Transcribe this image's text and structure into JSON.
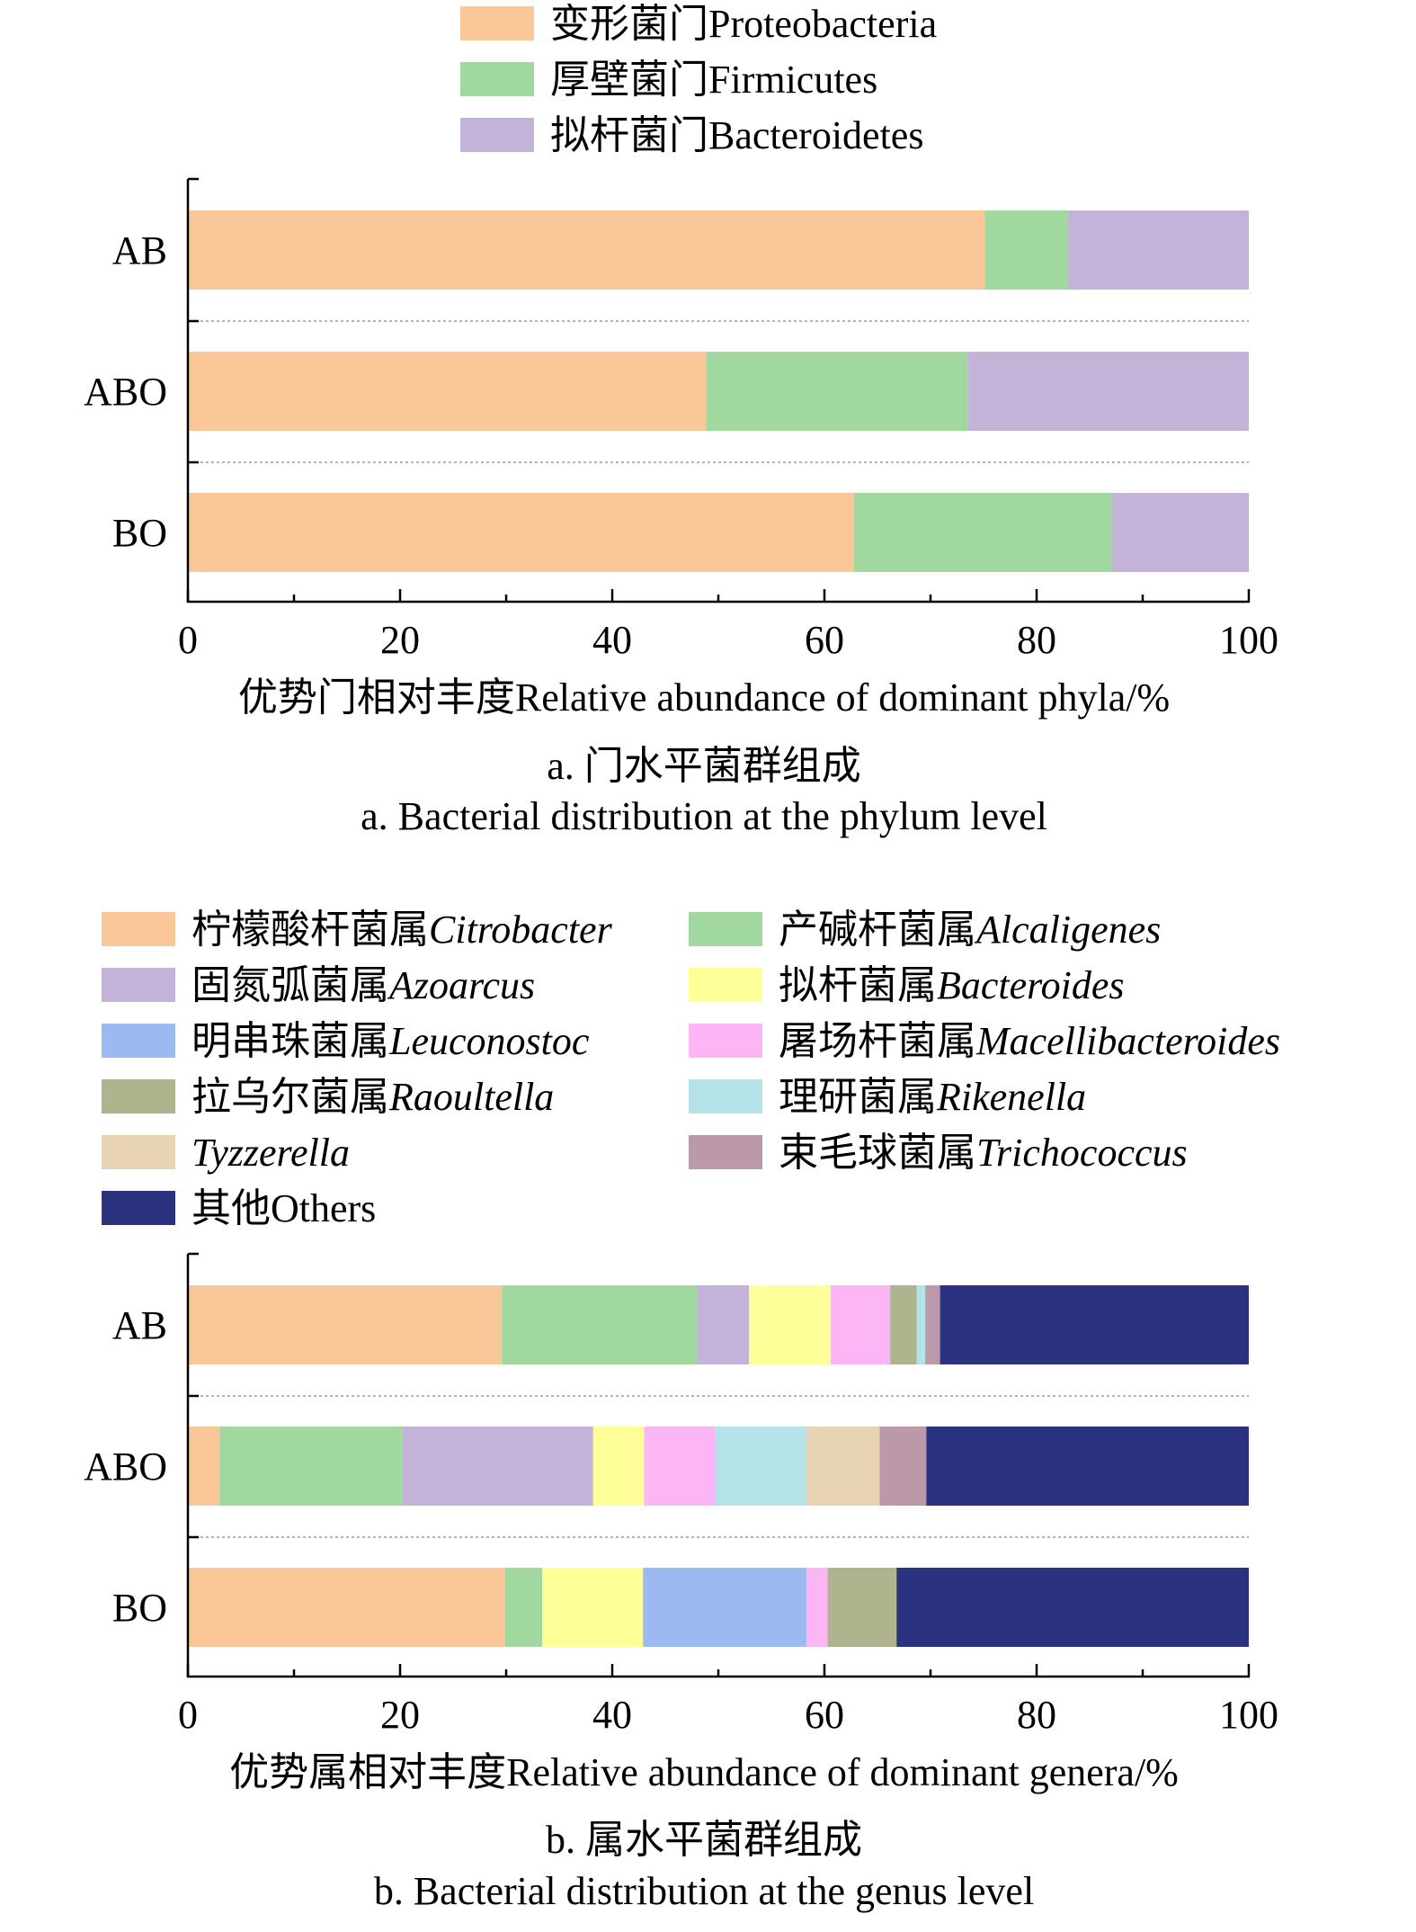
{
  "chart_data": [
    {
      "type": "bar",
      "orientation": "horizontal",
      "stacked": true,
      "categories": [
        "AB",
        "ABO",
        "BO"
      ],
      "series": [
        {
          "name": "变形菌门Proteobacteria",
          "label_cn": "变形菌门",
          "label_latin": "Proteobacteria",
          "italic": false,
          "color": "#FAC898",
          "values": [
            75.1,
            48.9,
            62.8
          ]
        },
        {
          "name": "厚壁菌门Firmicutes",
          "label_cn": "厚壁菌门",
          "label_latin": "Firmicutes",
          "italic": false,
          "color": "#A0D8A0",
          "values": [
            7.8,
            24.6,
            24.3
          ]
        },
        {
          "name": "拟杆菌门Bacteroidetes",
          "label_cn": "拟杆菌门",
          "label_latin": "Bacteroidetes",
          "italic": false,
          "color": "#C3B3D8",
          "values": [
            17.1,
            26.5,
            12.9
          ]
        }
      ],
      "xlim": [
        0,
        100
      ],
      "xticks": [
        "0",
        "20",
        "40",
        "60",
        "80",
        "100"
      ],
      "xlabel": "优势门相对丰度Relative abundance of dominant phyla/%",
      "caption_cn": "a. 门水平菌群组成",
      "caption_en": "a. Bacterial distribution at the phylum level",
      "legend_position": "top",
      "grid": false
    },
    {
      "type": "bar",
      "orientation": "horizontal",
      "stacked": true,
      "categories": [
        "AB",
        "ABO",
        "BO"
      ],
      "series": [
        {
          "name": "柠檬酸杆菌属Citrobacter",
          "label_cn": "柠檬酸杆菌属",
          "label_latin": "Citrobacter",
          "italic": true,
          "color": "#FAC898",
          "values": [
            29.6,
            3.0,
            29.9
          ]
        },
        {
          "name": "产碱杆菌属Alcaligenes",
          "label_cn": "产碱杆菌属",
          "label_latin": "Alcaligenes",
          "italic": true,
          "color": "#A0D8A0",
          "values": [
            18.4,
            17.2,
            3.5
          ]
        },
        {
          "name": "固氮弧菌属Azoarcus",
          "label_cn": "固氮弧菌属",
          "label_latin": "Azoarcus",
          "italic": true,
          "color": "#C3B3D8",
          "values": [
            4.9,
            18.0,
            0
          ]
        },
        {
          "name": "拟杆菌属Bacteroides",
          "label_cn": "拟杆菌属",
          "label_latin": "Bacteroides",
          "italic": true,
          "color": "#FFFF99",
          "values": [
            7.7,
            4.8,
            9.5
          ]
        },
        {
          "name": "明串珠菌属Leuconostoc",
          "label_cn": "明串珠菌属",
          "label_latin": "Leuconostoc",
          "italic": true,
          "color": "#9DB9F2",
          "values": [
            0,
            0,
            15.4
          ]
        },
        {
          "name": "屠场杆菌属Macellibacteroides",
          "label_cn": "屠场杆菌属",
          "label_latin": "Macellibacteroides",
          "italic": true,
          "color": "#FCB5F5",
          "values": [
            5.6,
            6.7,
            2.0
          ]
        },
        {
          "name": "拉乌尔菌属Raoultella",
          "label_cn": "拉乌尔菌属",
          "label_latin": "Raoultella",
          "italic": true,
          "color": "#AFB48E",
          "values": [
            2.5,
            0,
            6.5
          ]
        },
        {
          "name": "理研菌属Rikenella",
          "label_cn": "理研菌属",
          "label_latin": "Rikenella",
          "italic": true,
          "color": "#B5E2E6",
          "values": [
            0.8,
            8.6,
            0
          ]
        },
        {
          "name": "Tyzzerella",
          "label_cn": "",
          "label_latin": "Tyzzerella",
          "italic": true,
          "color": "#E8D3B5",
          "values": [
            0,
            6.9,
            0
          ]
        },
        {
          "name": "束毛球菌属Trichococcus",
          "label_cn": "束毛球菌属",
          "label_latin": "Trichococcus",
          "italic": true,
          "color": "#BC99A8",
          "values": [
            1.4,
            4.4,
            0
          ]
        },
        {
          "name": "其他Others",
          "label_cn": "其他",
          "label_latin": "Others",
          "italic": false,
          "color": "#2B3280",
          "values": [
            29.1,
            30.4,
            33.2
          ]
        }
      ],
      "xlim": [
        0,
        100
      ],
      "xticks": [
        "0",
        "20",
        "40",
        "60",
        "80",
        "100"
      ],
      "xlabel": "优势属相对丰度Relative abundance of dominant genera/%",
      "caption_cn": "b. 属水平菌群组成",
      "caption_en": "b. Bacterial distribution at the genus level",
      "legend_position": "top",
      "grid": false
    }
  ]
}
